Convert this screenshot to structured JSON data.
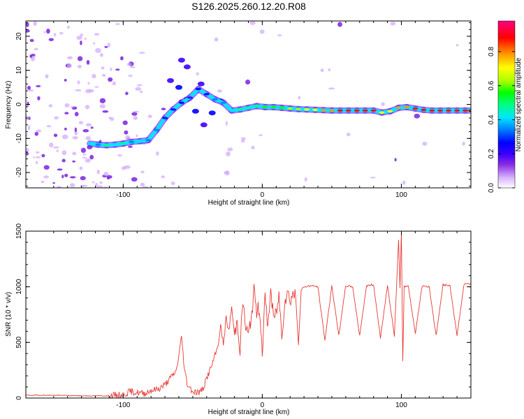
{
  "figure_title": "S126.2025.260.12.20.R08",
  "colors": {
    "snr_line": "#e53935",
    "axis": "#000000",
    "background": "#ffffff",
    "colormap": [
      "#ffffff",
      "#d9b3ff",
      "#8a2be2",
      "#3f00ff",
      "#0000ff",
      "#0080ff",
      "#00e5ff",
      "#00ff80",
      "#00ff00",
      "#aaff00",
      "#ffff00",
      "#ff9900",
      "#ff0000",
      "#ff0080"
    ]
  },
  "chart_data": [
    {
      "type": "heatmap",
      "title": "S126.2025.260.12.20.R08",
      "xlabel": "Height of straight line (km)",
      "ylabel": "Frequency (Hz)",
      "xlim": [
        -170,
        150
      ],
      "ylim": [
        -24.5,
        24.5
      ],
      "xticks": [
        -100,
        0,
        100
      ],
      "yticks": [
        -20,
        -10,
        0,
        10,
        20
      ],
      "colorbar": {
        "label": "Normalized spectral amplitude",
        "range": [
          0,
          0.98
        ],
        "ticks": [
          "0.0",
          "0.2",
          "0.4",
          "0.6",
          "0.8"
        ]
      },
      "signal_track": [
        [
          -124,
          -11.5,
          0.45
        ],
        [
          -118,
          -11.8,
          0.4
        ],
        [
          -112,
          -12.0,
          0.5
        ],
        [
          -106,
          -11.8,
          0.45
        ],
        [
          -100,
          -11.5,
          0.5
        ],
        [
          -94,
          -11.0,
          0.4
        ],
        [
          -88,
          -10.8,
          0.45
        ],
        [
          -82,
          -10.5,
          0.4
        ],
        [
          -76,
          -7.5,
          0.35
        ],
        [
          -70,
          -4.0,
          0.3
        ],
        [
          -64,
          -1.5,
          0.3
        ],
        [
          -58,
          0.5,
          0.3
        ],
        [
          -52,
          2.0,
          0.25
        ],
        [
          -46,
          4.5,
          0.3
        ],
        [
          -40,
          3.0,
          0.3
        ],
        [
          -34,
          1.5,
          0.35
        ],
        [
          -28,
          0.5,
          0.4
        ],
        [
          -22,
          -1.8,
          0.45
        ],
        [
          -16,
          -1.5,
          0.5
        ],
        [
          -10,
          -1.0,
          0.5
        ],
        [
          -4,
          -0.5,
          0.55
        ],
        [
          2,
          -0.8,
          0.6
        ],
        [
          8,
          -0.8,
          0.6
        ],
        [
          14,
          -1.0,
          0.65
        ],
        [
          20,
          -1.2,
          0.7
        ],
        [
          26,
          -1.4,
          0.7
        ],
        [
          32,
          -1.5,
          0.75
        ],
        [
          38,
          -1.6,
          0.8
        ],
        [
          44,
          -1.7,
          0.85
        ],
        [
          50,
          -1.8,
          0.85
        ],
        [
          56,
          -1.8,
          0.9
        ],
        [
          62,
          -1.8,
          0.9
        ],
        [
          68,
          -1.8,
          0.9
        ],
        [
          74,
          -1.8,
          0.95
        ],
        [
          80,
          -1.8,
          0.9
        ],
        [
          86,
          -2.4,
          0.8
        ],
        [
          92,
          -2.0,
          0.8
        ],
        [
          98,
          -1.0,
          0.85
        ],
        [
          104,
          -0.8,
          0.85
        ],
        [
          110,
          -1.2,
          0.9
        ],
        [
          116,
          -1.6,
          0.9
        ],
        [
          122,
          -1.8,
          0.9
        ],
        [
          128,
          -1.8,
          0.9
        ],
        [
          134,
          -1.8,
          0.9
        ],
        [
          140,
          -1.8,
          0.9
        ],
        [
          146,
          -1.8,
          0.9
        ],
        [
          150,
          -1.8,
          0.9
        ]
      ],
      "secondary_track": [
        [
          -66,
          7.0,
          0.25
        ],
        [
          -60,
          5.0,
          0.3
        ],
        [
          -54,
          1.5,
          0.3
        ],
        [
          -48,
          -2.0,
          0.3
        ],
        [
          -42,
          -6.0,
          0.25
        ],
        [
          -36,
          -2.5,
          0.3
        ],
        [
          -30,
          1.0,
          0.3
        ],
        [
          -44,
          6.0,
          0.25
        ],
        [
          -54,
          11.0,
          0.2
        ],
        [
          -58,
          13.0,
          0.2
        ]
      ]
    },
    {
      "type": "line",
      "xlabel": "Height of straight line (km)",
      "ylabel": "SNR (10 * v/v)",
      "xlim": [
        -170,
        150
      ],
      "ylim": [
        0,
        1500
      ],
      "xticks": [
        -100,
        0,
        100
      ],
      "yticks": [
        0,
        500,
        1000,
        1500
      ],
      "series": [
        {
          "name": "SNR",
          "x": [
            -170,
            -150,
            -130,
            -110,
            -100,
            -95,
            -90,
            -85,
            -80,
            -75,
            -70,
            -66,
            -62,
            -60,
            -58,
            -56,
            -54,
            -50,
            -45,
            -42,
            -40,
            -36,
            -32,
            -30,
            -28,
            -26,
            -24,
            -22,
            -20,
            -18,
            -16,
            -14,
            -12,
            -10,
            -8,
            -6,
            -4,
            -2,
            0,
            2,
            4,
            6,
            8,
            10,
            12,
            14,
            16,
            18,
            20,
            22,
            24,
            26,
            28,
            30,
            35,
            40,
            45,
            50,
            55,
            60,
            65,
            70,
            75,
            80,
            85,
            90,
            95,
            98,
            99,
            100,
            101,
            102,
            105,
            110,
            115,
            120,
            125,
            130,
            135,
            140,
            145,
            150
          ],
          "y": [
            25,
            25,
            20,
            20,
            30,
            60,
            50,
            40,
            70,
            80,
            120,
            180,
            240,
            380,
            560,
            260,
            130,
            60,
            50,
            100,
            180,
            300,
            460,
            650,
            480,
            720,
            600,
            820,
            560,
            700,
            440,
            880,
            640,
            560,
            720,
            960,
            780,
            820,
            420,
            900,
            640,
            980,
            720,
            760,
            920,
            560,
            860,
            960,
            880,
            940,
            920,
            480,
            970,
            1000,
            1010,
            1000,
            520,
            1010,
            560,
            1010,
            1000,
            560,
            1010,
            1020,
            540,
            1010,
            560,
            1420,
            980,
            1500,
            330,
            1000,
            1010,
            580,
            1010,
            1000,
            560,
            1020,
            1010,
            560,
            1020,
            1030
          ]
        }
      ]
    }
  ]
}
